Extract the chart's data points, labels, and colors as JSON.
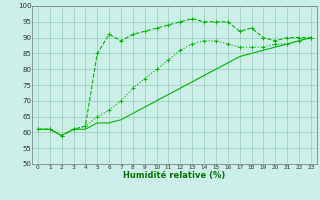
{
  "background_color": "#cceee8",
  "grid_color": "#99ccbb",
  "line_color": "#00bb00",
  "xlabel": "Humidité relative (%)",
  "xlabel_color": "#007700",
  "xlim": [
    -0.5,
    23.5
  ],
  "ylim": [
    50,
    100
  ],
  "yticks": [
    50,
    55,
    60,
    65,
    70,
    75,
    80,
    85,
    90,
    95,
    100
  ],
  "xticks": [
    0,
    1,
    2,
    3,
    4,
    5,
    6,
    7,
    8,
    9,
    10,
    11,
    12,
    13,
    14,
    15,
    16,
    17,
    18,
    19,
    20,
    21,
    22,
    23
  ],
  "series_upper_x": [
    0,
    1,
    2,
    3,
    4,
    5,
    6,
    7,
    8,
    9,
    10,
    11,
    12,
    13,
    14,
    15,
    16,
    17,
    18,
    19,
    20,
    21,
    22,
    23
  ],
  "series_upper_y": [
    61,
    61,
    59,
    61,
    62,
    85,
    91,
    89,
    91,
    92,
    93,
    94,
    95,
    96,
    95,
    95,
    95,
    92,
    93,
    90,
    89,
    90,
    90,
    90
  ],
  "series_mid_x": [
    0,
    1,
    2,
    3,
    4,
    5,
    6,
    7,
    8,
    9,
    10,
    11,
    12,
    13,
    14,
    15,
    16,
    17,
    18,
    19,
    20,
    21,
    22,
    23
  ],
  "series_mid_y": [
    61,
    61,
    59,
    61,
    62,
    65,
    67,
    70,
    74,
    77,
    80,
    83,
    86,
    88,
    89,
    89,
    88,
    87,
    87,
    87,
    88,
    88,
    89,
    90
  ],
  "series_low_x": [
    0,
    1,
    2,
    3,
    4,
    5,
    6,
    7,
    8,
    9,
    10,
    11,
    12,
    13,
    14,
    15,
    16,
    17,
    18,
    19,
    20,
    21,
    22,
    23
  ],
  "series_low_y": [
    61,
    61,
    59,
    61,
    61,
    63,
    63,
    64,
    66,
    68,
    70,
    72,
    74,
    76,
    78,
    80,
    82,
    84,
    85,
    86,
    87,
    88,
    89,
    90
  ]
}
